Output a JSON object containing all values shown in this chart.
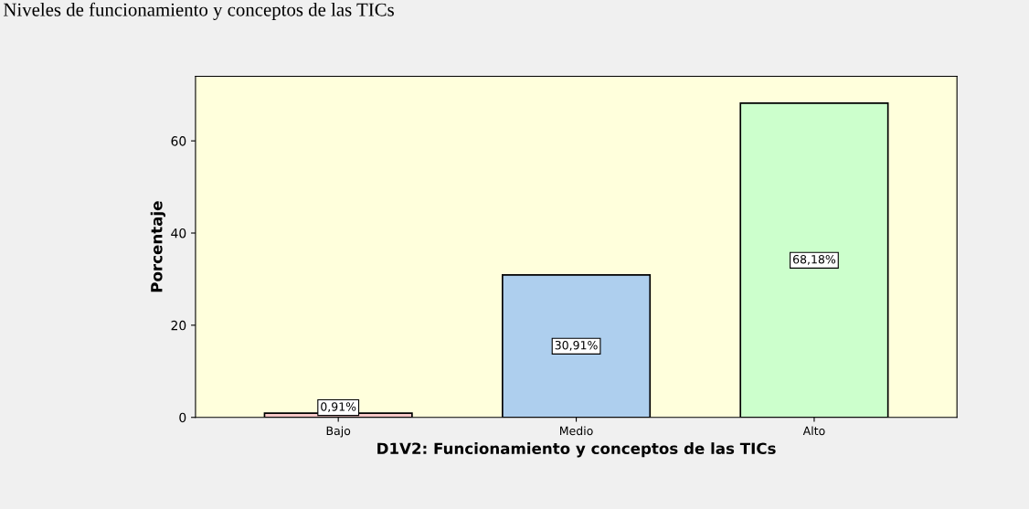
{
  "chart_data": {
    "type": "bar",
    "title": "Niveles de funcionamiento y conceptos de las TICs",
    "xlabel": "D1V2: Funcionamiento y conceptos de las TICs",
    "ylabel": "Porcentaje",
    "categories": [
      "Bajo",
      "Medio",
      "Alto"
    ],
    "values": [
      0.91,
      30.91,
      68.18
    ],
    "colors": [
      "#f8c8c8",
      "#aecfee",
      "#ccffcc"
    ],
    "value_labels": [
      "0,91%",
      "30,91%",
      "68,18%"
    ],
    "ylim": [
      0,
      74
    ],
    "yticks": [
      0,
      20,
      40,
      60
    ],
    "grid": false
  }
}
